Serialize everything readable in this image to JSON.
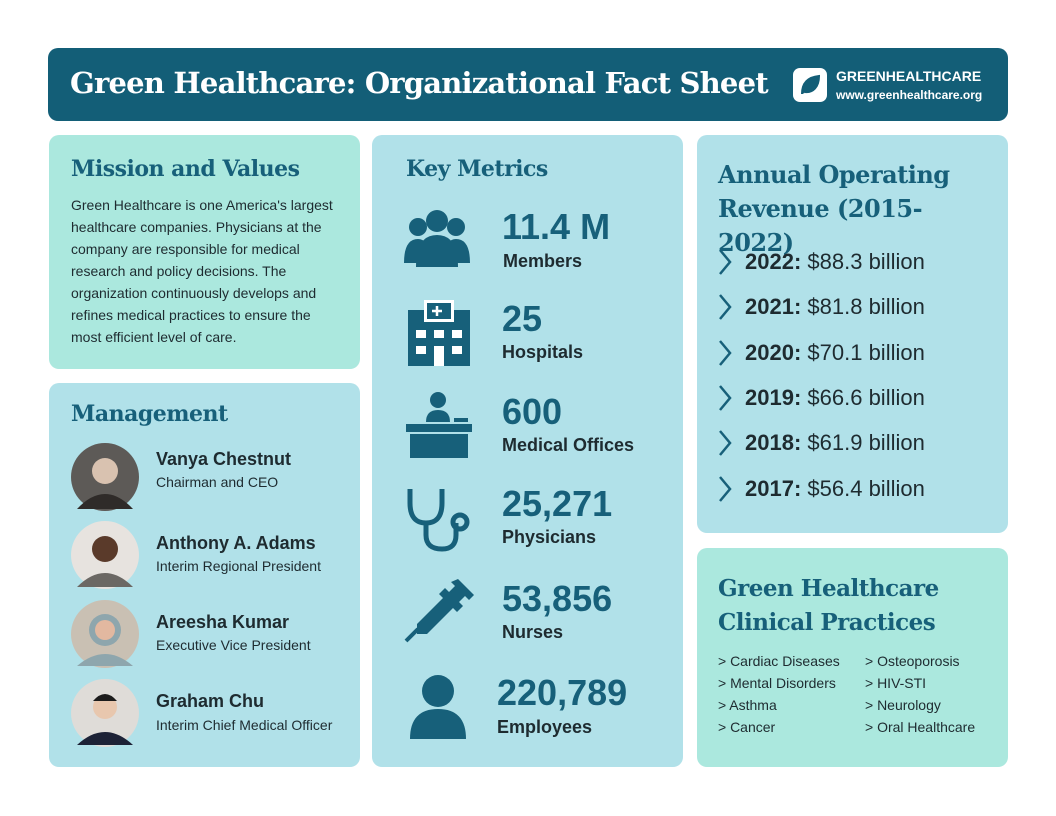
{
  "header": {
    "title": "Green Healthcare: Organizational Fact Sheet",
    "brand": "GREENHEALTHCARE",
    "url": "www.greenhealthcare.org"
  },
  "mission": {
    "title": "Mission and Values",
    "text": "Green Healthcare is one America's largest healthcare companies. Physicians at the company are responsible for medical research and policy decisions. The organization continuously develops and refines medical practices to ensure the most efficient level of care."
  },
  "management": {
    "title": "Management",
    "people": [
      {
        "name": "Vanya Chestnut",
        "role": "Chairman and CEO"
      },
      {
        "name": "Anthony A. Adams",
        "role": "Interim Regional President"
      },
      {
        "name": "Areesha Kumar",
        "role": "Executive Vice President"
      },
      {
        "name": "Graham Chu",
        "role": "Interim Chief Medical Officer"
      }
    ]
  },
  "metrics": {
    "title": "Key Metrics",
    "items": [
      {
        "value": "11.4 M",
        "label": "Members"
      },
      {
        "value": "25",
        "label": "Hospitals"
      },
      {
        "value": "600",
        "label": "Medical Offices"
      },
      {
        "value": "25,271",
        "label": "Physicians"
      },
      {
        "value": "53,856",
        "label": "Nurses"
      },
      {
        "value": "220,789",
        "label": "Employees"
      }
    ]
  },
  "revenue": {
    "title": "Annual Operating Revenue (2015-2022)",
    "items": [
      {
        "year": "2022:",
        "amount": "$88.3 billion"
      },
      {
        "year": "2021:",
        "amount": "$81.8 billion"
      },
      {
        "year": "2020:",
        "amount": "$70.1 billion"
      },
      {
        "year": "2019:",
        "amount": "$66.6 billion"
      },
      {
        "year": "2018:",
        "amount": "$61.9 billion"
      },
      {
        "year": "2017:",
        "amount": "$56.4 billion"
      }
    ]
  },
  "practices": {
    "title": "Green Healthcare Clinical Practices",
    "items": [
      "> Cardiac Diseases",
      "> Mental Disorders",
      "> Asthma",
      "> Cancer",
      "> Osteoporosis",
      "> HIV-STI",
      "> Neurology",
      "> Oral Healthcare"
    ]
  }
}
